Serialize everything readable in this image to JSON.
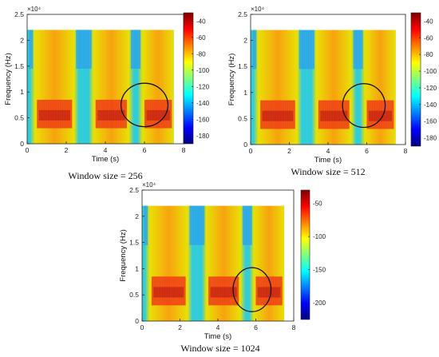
{
  "chart_data": [
    {
      "type": "heatmap",
      "subplot_label": "Window size = 256",
      "xlabel": "Time (s)",
      "ylabel": "Frequency (Hz)",
      "y_exponent": "×10⁴",
      "xlim": [
        0,
        8
      ],
      "ylim": [
        0,
        2.5
      ],
      "x_ticks": [
        "0",
        "2",
        "4",
        "6",
        "8"
      ],
      "y_ticks": [
        "0",
        "0.5",
        "1",
        "1.5",
        "2",
        "2.5"
      ],
      "data_extent": {
        "t_max": 7.5,
        "f_max": 2.2
      },
      "colorbar": {
        "min": -190,
        "max": -30,
        "ticks": [
          "-40",
          "-60",
          "-80",
          "-100",
          "-120",
          "-140",
          "-160",
          "-180"
        ],
        "tick_values": [
          -40,
          -60,
          -80,
          -100,
          -120,
          -140,
          -160,
          -180
        ]
      },
      "active_segments_s": [
        [
          0.4,
          2.4
        ],
        [
          3.4,
          5.2
        ],
        [
          5.9,
          7.5
        ]
      ],
      "highlight_ellipse": {
        "center_t": 6.0,
        "center_f": 0.75,
        "rx_t": 1.2,
        "ry_f": 0.42
      }
    },
    {
      "type": "heatmap",
      "subplot_label": "Window size = 512",
      "xlabel": "Time (s)",
      "ylabel": "Frequency (Hz)",
      "y_exponent": "×10⁴",
      "xlim": [
        0,
        8
      ],
      "ylim": [
        0,
        2.5
      ],
      "x_ticks": [
        "0",
        "2",
        "4",
        "6",
        "8"
      ],
      "y_ticks": [
        "0",
        "0.5",
        "1",
        "1.5",
        "2",
        "2.5"
      ],
      "data_extent": {
        "t_max": 7.5,
        "f_max": 2.2
      },
      "colorbar": {
        "min": -190,
        "max": -30,
        "ticks": [
          "-40",
          "-60",
          "-80",
          "-100",
          "-120",
          "-140",
          "-160",
          "-180"
        ],
        "tick_values": [
          -40,
          -60,
          -80,
          -100,
          -120,
          -140,
          -160,
          -180
        ]
      },
      "active_segments_s": [
        [
          0.4,
          2.4
        ],
        [
          3.4,
          5.2
        ],
        [
          5.9,
          7.5
        ]
      ],
      "highlight_ellipse": {
        "center_t": 5.85,
        "center_f": 0.75,
        "rx_t": 1.1,
        "ry_f": 0.42
      }
    },
    {
      "type": "heatmap",
      "subplot_label": "Window size = 1024",
      "xlabel": "Time (s)",
      "ylabel": "Frequency (Hz)",
      "y_exponent": "×10⁴",
      "xlim": [
        0,
        8
      ],
      "ylim": [
        0,
        2.5
      ],
      "x_ticks": [
        "0",
        "2",
        "4",
        "6",
        "8"
      ],
      "y_ticks": [
        "0",
        "0.5",
        "1",
        "1.5",
        "2",
        "2.5"
      ],
      "data_extent": {
        "t_max": 7.5,
        "f_max": 2.2
      },
      "colorbar": {
        "min": -225,
        "max": -30,
        "ticks": [
          "-50",
          "-100",
          "-150",
          "-200"
        ],
        "tick_values": [
          -50,
          -100,
          -150,
          -200
        ]
      },
      "active_segments_s": [
        [
          0.4,
          2.4
        ],
        [
          3.4,
          5.2
        ],
        [
          5.9,
          7.5
        ]
      ],
      "highlight_ellipse": {
        "center_t": 5.8,
        "center_f": 0.6,
        "rx_t": 1.0,
        "ry_f": 0.42
      }
    }
  ]
}
